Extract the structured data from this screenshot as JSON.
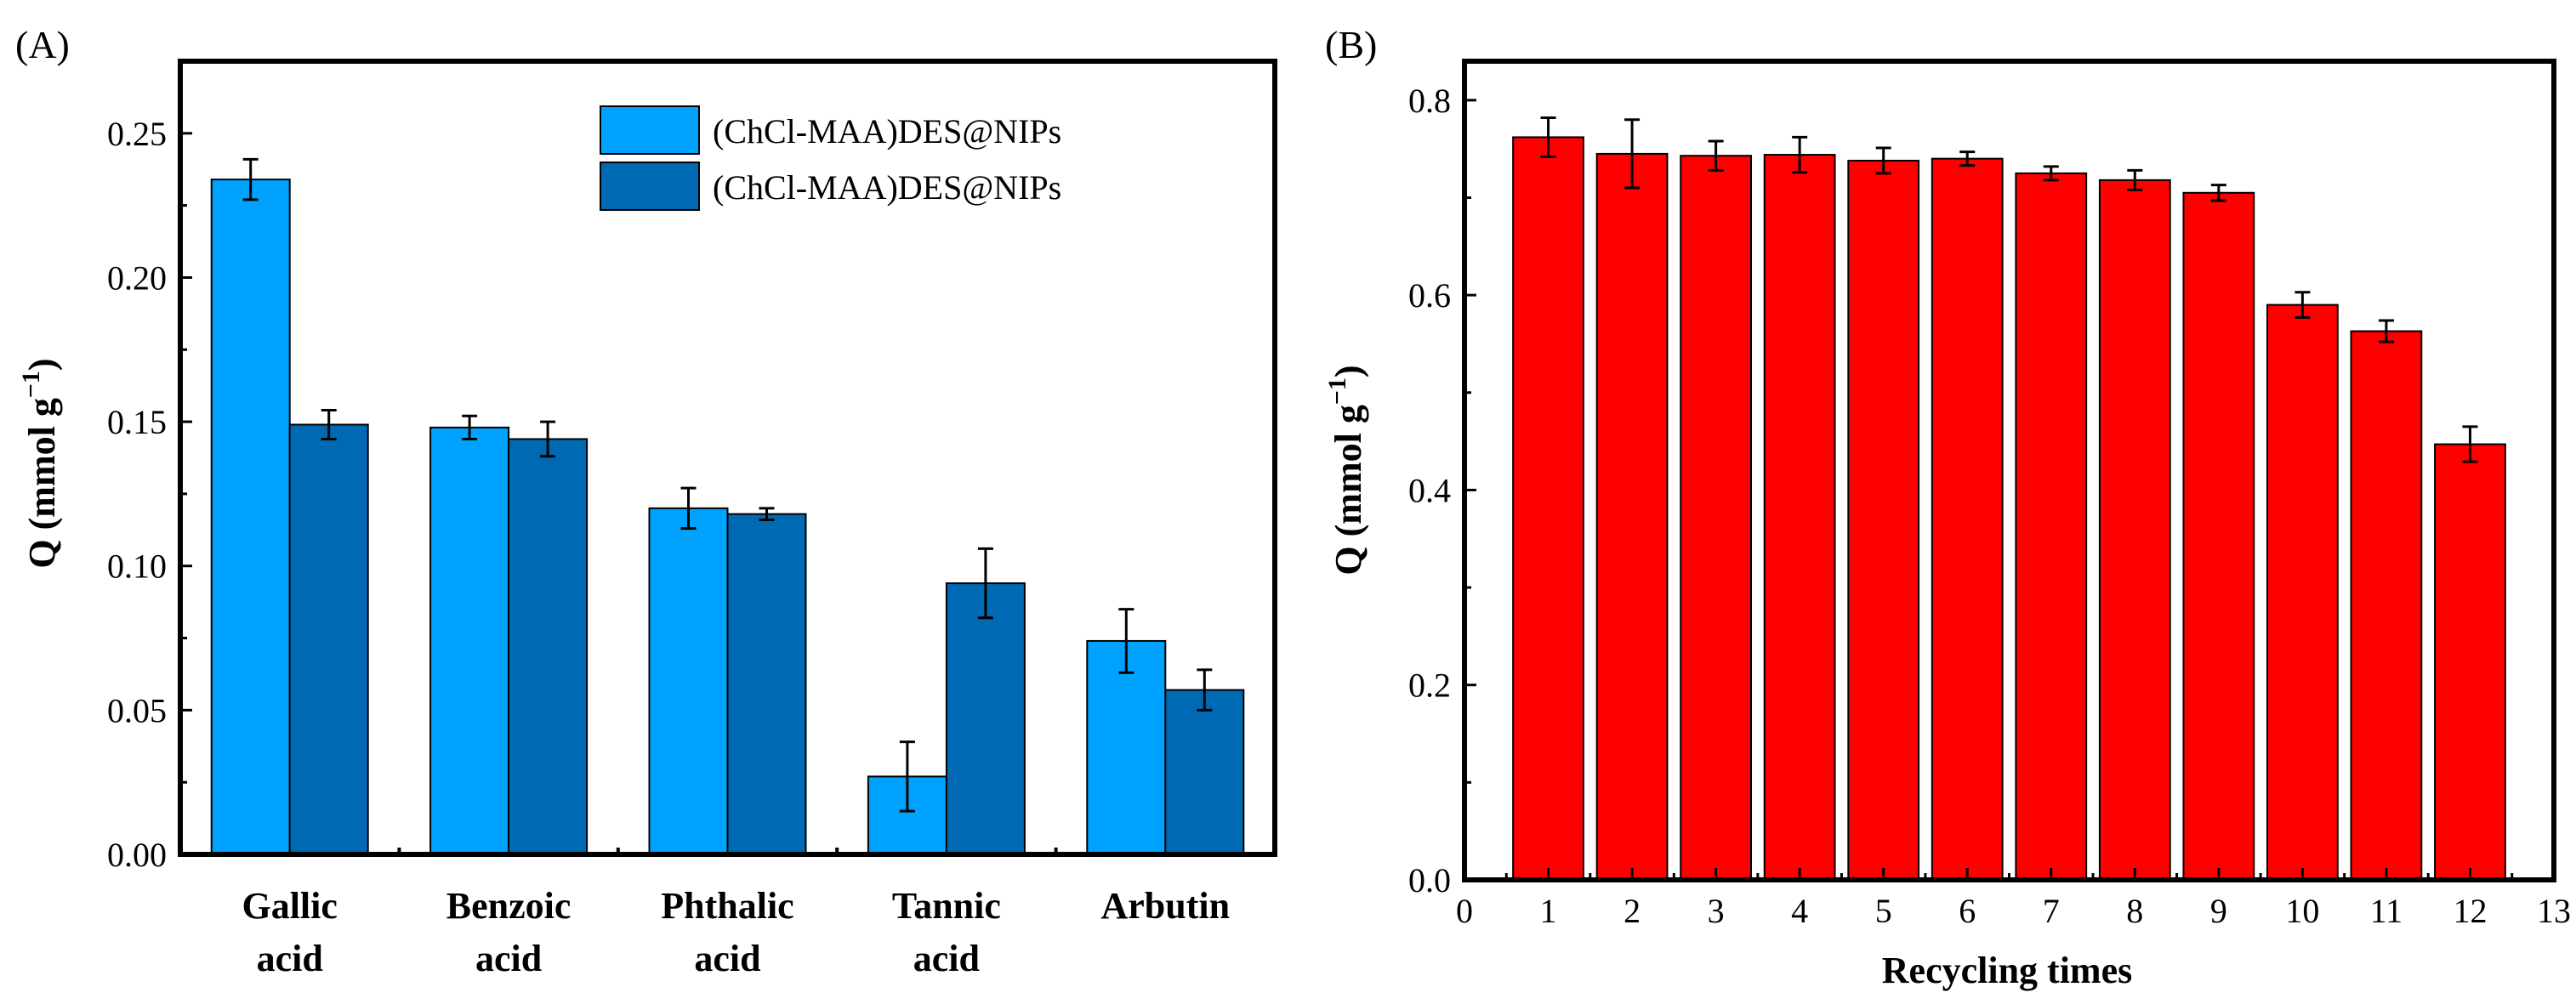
{
  "chart_data": [
    {
      "type": "bar",
      "panel_label": "(A)",
      "categories": [
        [
          "Gallic",
          "acid"
        ],
        [
          "Benzoic",
          "acid"
        ],
        [
          "Phthalic",
          "acid"
        ],
        [
          "Tannic",
          "acid"
        ],
        [
          "Arbutin"
        ]
      ],
      "series": [
        {
          "name": "(ChCl-MAA)DES@NIPs",
          "color": "#00a2ff",
          "values": [
            0.234,
            0.148,
            0.12,
            0.027,
            0.074
          ],
          "errors": [
            0.007,
            0.004,
            0.007,
            0.012,
            0.011
          ]
        },
        {
          "name": "(ChCl-MAA)DES@NIPs",
          "color": "#0069b4",
          "values": [
            0.149,
            0.144,
            0.118,
            0.094,
            0.057
          ],
          "errors": [
            0.005,
            0.006,
            0.002,
            0.012,
            0.007
          ]
        }
      ],
      "xlabel": "",
      "ylabel": "Q (mmol g",
      "ylabel_sup": "−1",
      "ylabel_end": ")",
      "ylim": [
        0,
        0.275
      ],
      "yticks": [
        "0.00",
        "0.05",
        "0.10",
        "0.15",
        "0.20",
        "0.25"
      ],
      "ytick_values": [
        0,
        0.05,
        0.1,
        0.15,
        0.2,
        0.25
      ],
      "legend": "top-right"
    },
    {
      "type": "bar",
      "panel_label": "(B)",
      "x": [
        1,
        2,
        3,
        4,
        5,
        6,
        7,
        8,
        9,
        10,
        11,
        12
      ],
      "values": [
        0.762,
        0.745,
        0.743,
        0.744,
        0.738,
        0.74,
        0.725,
        0.718,
        0.705,
        0.59,
        0.563,
        0.447
      ],
      "errors": [
        0.02,
        0.035,
        0.015,
        0.018,
        0.013,
        0.007,
        0.007,
        0.01,
        0.008,
        0.013,
        0.011,
        0.018
      ],
      "color": "#ff0000",
      "xlabel": "Recycling times",
      "ylabel": "Q (mmol g",
      "ylabel_sup": "−1",
      "ylabel_end": ")",
      "xlim": [
        0,
        13
      ],
      "xticks": [
        "0",
        "1",
        "2",
        "3",
        "4",
        "5",
        "6",
        "7",
        "8",
        "9",
        "10",
        "11",
        "12",
        "13"
      ],
      "xtick_values": [
        0,
        1,
        2,
        3,
        4,
        5,
        6,
        7,
        8,
        9,
        10,
        11,
        12,
        13
      ],
      "ylim": [
        0,
        0.84
      ],
      "yticks": [
        "0.0",
        "0.2",
        "0.4",
        "0.6",
        "0.8"
      ],
      "ytick_values": [
        0,
        0.2,
        0.4,
        0.6,
        0.8
      ]
    }
  ]
}
